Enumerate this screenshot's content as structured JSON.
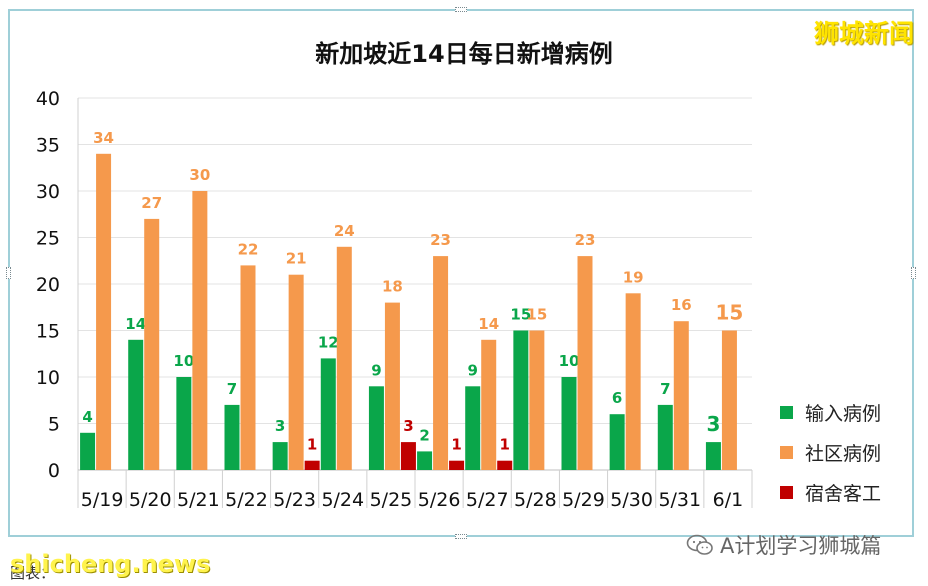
{
  "brand": {
    "label": "狮城新闻"
  },
  "watermarks": {
    "site": "shicheng.news",
    "wechat": "A计划学习狮城篇",
    "caption": "图表："
  },
  "chart_data": {
    "type": "bar",
    "title": "新加坡近14日每日新增病例",
    "categories": [
      "5/19",
      "5/20",
      "5/21",
      "5/22",
      "5/23",
      "5/24",
      "5/25",
      "5/26",
      "5/27",
      "5/28",
      "5/29",
      "5/30",
      "5/31",
      "6/1"
    ],
    "series": [
      {
        "name": "输入病例",
        "color": "#0aa64a",
        "values": [
          4,
          14,
          10,
          7,
          3,
          12,
          9,
          2,
          9,
          15,
          10,
          6,
          7,
          3
        ]
      },
      {
        "name": "社区病例",
        "color": "#f5994c",
        "values": [
          34,
          27,
          30,
          22,
          21,
          24,
          18,
          23,
          14,
          15,
          23,
          19,
          16,
          15
        ]
      },
      {
        "name": "宿舍客工",
        "color": "#c00000",
        "values": [
          0,
          0,
          0,
          0,
          1,
          0,
          3,
          1,
          1,
          0,
          0,
          0,
          0,
          0
        ]
      }
    ],
    "ylim": [
      0,
      40
    ],
    "yticks": [
      "0",
      "5",
      "10",
      "15",
      "20",
      "25",
      "30",
      "35",
      "40"
    ],
    "grid": true,
    "legend": "right"
  }
}
